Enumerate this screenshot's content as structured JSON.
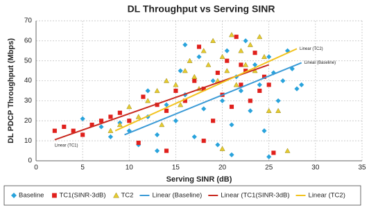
{
  "chart_data": {
    "type": "scatter",
    "title": "DL Throughput vs Serving SINR",
    "xlabel": "Serving SINR (dB)",
    "ylabel": "DL PDCP Throughput (Mbps)",
    "xlim": [
      0,
      35
    ],
    "xticks": [
      0,
      5,
      10,
      15,
      20,
      25,
      30,
      35
    ],
    "ylim": [
      0,
      70
    ],
    "yticks": [
      0,
      10,
      20,
      30,
      40,
      50,
      60,
      70
    ],
    "grid": true,
    "legend": "bottom",
    "series": [
      {
        "name": "Baseline",
        "kind": "marker",
        "marker": "diamond",
        "color": "#29a3dc",
        "x": [
          5,
          7,
          8,
          9,
          10,
          11,
          12,
          13,
          14,
          15,
          15.5,
          16,
          17,
          17.5,
          18,
          19,
          19.5,
          20,
          20.5,
          21,
          21.5,
          22,
          22.5,
          23,
          23.5,
          24,
          24.5,
          25,
          25.5,
          26,
          26.5,
          27,
          27.5,
          28,
          28.5,
          21,
          25,
          12,
          16,
          13
        ],
        "values": [
          21,
          17,
          12,
          19,
          15,
          8,
          22,
          13,
          28,
          20,
          45,
          33,
          12,
          52,
          26,
          40,
          8,
          30,
          55,
          18,
          42,
          35,
          60,
          25,
          48,
          38,
          15,
          52,
          44,
          30,
          40,
          55,
          46,
          36,
          38,
          3,
          2,
          35,
          58,
          5
        ]
      },
      {
        "name": "TC1(SINR-3dB)",
        "kind": "marker",
        "marker": "square",
        "color": "#e0201c",
        "x": [
          2,
          3,
          4,
          5,
          6,
          7,
          8,
          9,
          10,
          11,
          11.5,
          13,
          14,
          15,
          16,
          17,
          17.5,
          18,
          19,
          19.5,
          20,
          20.5,
          21,
          21.5,
          22,
          22.5,
          23,
          23.5,
          24,
          24.5,
          25,
          25.5,
          18,
          22,
          14
        ],
        "values": [
          15,
          17,
          15,
          13,
          18,
          20,
          22,
          24,
          20,
          9,
          32,
          28,
          25,
          35,
          30,
          40,
          57,
          36,
          20,
          44,
          33,
          50,
          27,
          62,
          38,
          45,
          30,
          54,
          35,
          42,
          38,
          4,
          10,
          48,
          5
        ]
      },
      {
        "name": "TC2",
        "kind": "marker",
        "marker": "triangle",
        "color": "#e6cb2e",
        "x": [
          8,
          9,
          10,
          11,
          12,
          13,
          13.5,
          14,
          15,
          15.5,
          16,
          16.5,
          17,
          17.5,
          18,
          18.5,
          19,
          19.5,
          20,
          20.5,
          21,
          21.5,
          22,
          22.5,
          23,
          23.5,
          24,
          24.5,
          25,
          26,
          27,
          20
        ],
        "values": [
          15,
          18,
          27,
          22,
          30,
          35,
          18,
          40,
          38,
          28,
          45,
          50,
          42,
          36,
          55,
          48,
          60,
          40,
          52,
          45,
          63,
          38,
          55,
          48,
          58,
          45,
          62,
          52,
          25,
          25,
          5,
          6
        ]
      },
      {
        "name": "Linear (Baseline)",
        "kind": "line",
        "color": "#3a9ad6",
        "label": "Linear (Baseline)",
        "label_at": "end",
        "x": [
          9.5,
          28.5
        ],
        "values": [
          13,
          49
        ]
      },
      {
        "name": "Linear (TC1(SINR-3dB)",
        "kind": "line",
        "color": "#c8281e",
        "label": "Linear (TC1)",
        "label_at": "start",
        "x": [
          2,
          25
        ],
        "values": [
          10.5,
          48
        ]
      },
      {
        "name": "Linear (TC2)",
        "kind": "line",
        "color": "#f2c21c",
        "label": "Linear (TC2)",
        "label_at": "end",
        "x": [
          8.5,
          28
        ],
        "values": [
          15,
          56
        ]
      }
    ]
  }
}
